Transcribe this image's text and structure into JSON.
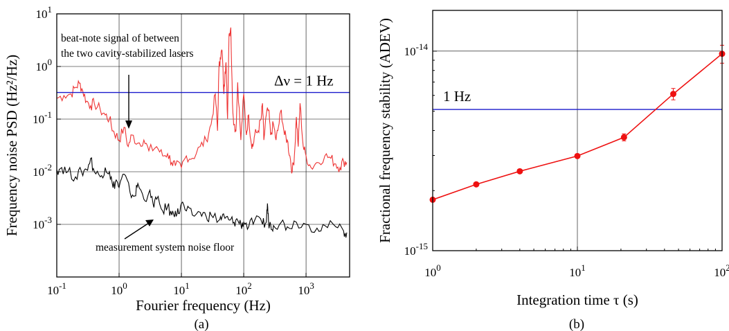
{
  "chart_data": [
    {
      "type": "line",
      "panel_label": "(a)",
      "xlabel": "Fourier frequency (Hz)",
      "ylabel": "Frequency noise PSD (Hz²/Hz)",
      "x_scale": "log",
      "y_scale": "log",
      "xlim": [
        0.1,
        5000
      ],
      "ylim": [
        0.0001,
        10
      ],
      "grid": true,
      "x_ticks": [
        {
          "value": 0.1,
          "base": "10",
          "exp": "-1"
        },
        {
          "value": 1,
          "base": "10",
          "exp": "0"
        },
        {
          "value": 10,
          "base": "10",
          "exp": "1"
        },
        {
          "value": 100,
          "base": "10",
          "exp": "2"
        },
        {
          "value": 1000,
          "base": "10",
          "exp": "3"
        }
      ],
      "y_ticks": [
        {
          "value": 0.001,
          "base": "10",
          "exp": "-3"
        },
        {
          "value": 0.01,
          "base": "10",
          "exp": "-2"
        },
        {
          "value": 0.1,
          "base": "10",
          "exp": "-1"
        },
        {
          "value": 1,
          "base": "10",
          "exp": "0"
        },
        {
          "value": 10,
          "base": "10",
          "exp": "1"
        }
      ],
      "reference_line": {
        "label": "Δν = 1 Hz",
        "y": 0.32,
        "color": "#1a1acc"
      },
      "annotations": [
        {
          "text_lines": [
            "beat-note signal of between",
            "the two cavity-stabilized lasers"
          ]
        },
        {
          "text_lines": [
            "measurement system noise floor"
          ]
        }
      ],
      "series": [
        {
          "color": "#ee3333",
          "x": [
            0.1,
            0.13,
            0.17,
            0.2,
            0.23,
            0.26,
            0.3,
            0.35,
            0.4,
            0.5,
            0.6,
            0.7,
            0.8,
            0.9,
            1.0,
            1.2,
            1.4,
            1.6,
            2.0,
            2.5,
            3.0,
            4.0,
            5.0,
            6.0,
            7.0,
            8.0,
            10,
            12,
            15,
            20,
            25,
            30,
            35,
            38,
            40,
            42,
            45,
            48,
            50,
            52,
            55,
            58,
            62,
            66,
            70,
            75,
            80,
            90,
            100,
            110,
            120,
            130,
            140,
            150,
            170,
            190,
            200,
            210,
            230,
            250,
            270,
            300,
            330,
            360,
            400,
            450,
            500,
            550,
            600,
            650,
            700,
            750,
            800,
            900,
            1000,
            1200,
            1500,
            2000,
            2500,
            3000,
            3500,
            4000,
            4500
          ],
          "y": [
            0.25,
            0.28,
            0.3,
            0.4,
            0.48,
            0.35,
            0.22,
            0.18,
            0.2,
            0.15,
            0.12,
            0.1,
            0.06,
            0.05,
            0.04,
            0.07,
            0.03,
            0.05,
            0.035,
            0.04,
            0.025,
            0.03,
            0.02,
            0.022,
            0.015,
            0.013,
            0.012,
            0.02,
            0.018,
            0.03,
            0.04,
            0.08,
            0.3,
            0.06,
            0.9,
            1.5,
            2.0,
            0.3,
            0.8,
            1.2,
            0.1,
            4.0,
            5.5,
            0.2,
            0.08,
            0.06,
            0.5,
            0.04,
            0.3,
            0.05,
            0.12,
            0.04,
            0.03,
            0.05,
            0.06,
            0.1,
            0.2,
            0.04,
            0.12,
            0.15,
            0.05,
            0.08,
            0.04,
            0.07,
            0.15,
            0.05,
            0.04,
            0.02,
            0.01,
            0.02,
            0.11,
            0.03,
            0.2,
            0.03,
            0.02,
            0.012,
            0.015,
            0.02,
            0.018,
            0.014,
            0.012,
            0.016,
            0.015
          ]
        },
        {
          "color": "#000000",
          "x": [
            0.1,
            0.12,
            0.15,
            0.2,
            0.25,
            0.3,
            0.35,
            0.4,
            0.5,
            0.6,
            0.7,
            0.8,
            0.9,
            1.0,
            1.2,
            1.5,
            1.8,
            2.0,
            2.5,
            3.0,
            3.5,
            4.0,
            5.0,
            6.0,
            7.0,
            8.0,
            9.0,
            10,
            12,
            15,
            20,
            25,
            30,
            40,
            45,
            50,
            60,
            70,
            80,
            90,
            100,
            120,
            150,
            200,
            230,
            240,
            250,
            270,
            300,
            400,
            500,
            700,
            1000,
            1500,
            2000,
            3000,
            4000,
            4500
          ],
          "y": [
            0.011,
            0.012,
            0.01,
            0.008,
            0.01,
            0.011,
            0.018,
            0.01,
            0.008,
            0.012,
            0.01,
            0.005,
            0.007,
            0.005,
            0.009,
            0.004,
            0.0035,
            0.006,
            0.003,
            0.004,
            0.0025,
            0.003,
            0.0018,
            0.0022,
            0.0015,
            0.0018,
            0.0016,
            0.0025,
            0.0018,
            0.0015,
            0.0017,
            0.0014,
            0.0015,
            0.0012,
            0.0014,
            0.0013,
            0.0012,
            0.0011,
            0.0012,
            0.001,
            0.0011,
            0.0009,
            0.0012,
            0.001,
            0.0011,
            0.0025,
            0.0011,
            0.001,
            0.00095,
            0.0011,
            0.0009,
            0.0011,
            0.001,
            0.00085,
            0.00095,
            0.0009,
            0.00075,
            0.0007
          ]
        }
      ]
    },
    {
      "type": "line",
      "panel_label": "(b)",
      "xlabel": "Integration time τ (s)",
      "ylabel": "Fractional frequency stability (ADEV)",
      "x_scale": "log",
      "y_scale": "log",
      "xlim": [
        1,
        100
      ],
      "ylim": [
        1e-15,
        1.6e-14
      ],
      "grid": true,
      "x_ticks": [
        {
          "value": 1,
          "base": "10",
          "exp": "0"
        },
        {
          "value": 10,
          "base": "10",
          "exp": "1"
        },
        {
          "value": 100,
          "base": "10",
          "exp": "2"
        }
      ],
      "y_ticks": [
        {
          "value": 1e-15,
          "base": "10",
          "exp": "-15"
        },
        {
          "value": 1e-14,
          "base": "10",
          "exp": "-14"
        }
      ],
      "reference_line": {
        "label": "1 Hz",
        "y": 5.1e-15,
        "color": "#1a1acc"
      },
      "series": [
        {
          "color": "#ee1111",
          "x": [
            1,
            2,
            4,
            10,
            21,
            46,
            100
          ],
          "y": [
            1.8e-15,
            2.15e-15,
            2.5e-15,
            2.98e-15,
            3.7e-15,
            6.1e-15,
            9.7e-15
          ],
          "yerr": [
            3e-17,
            4e-17,
            5e-17,
            7e-17,
            1.5e-16,
            4e-16,
            1e-15
          ]
        }
      ]
    }
  ]
}
